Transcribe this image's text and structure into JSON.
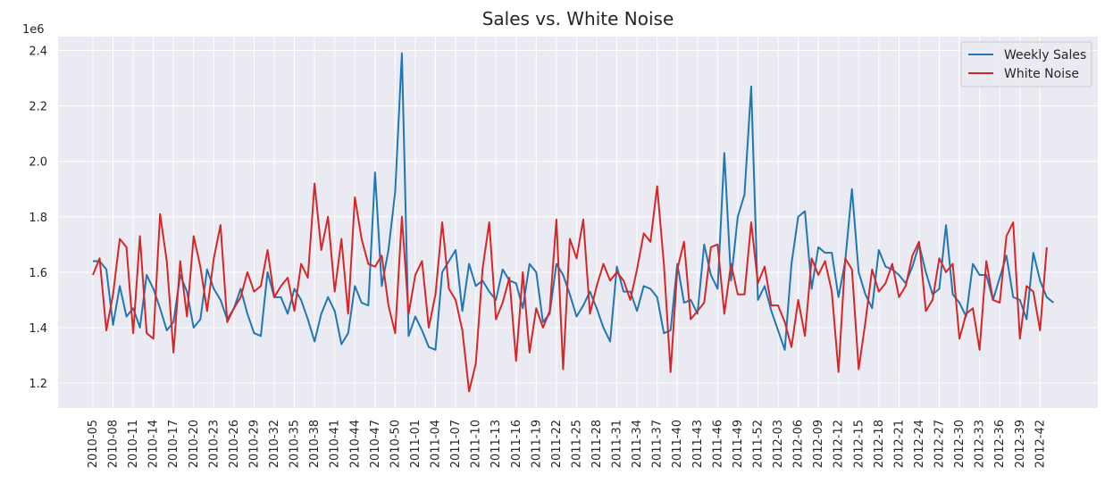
{
  "chart_data": {
    "type": "line",
    "title": "Sales vs. White Noise",
    "xlabel": "",
    "ylabel": "",
    "y_offset_label": "1e6",
    "ylim": [
      1.11,
      2.45
    ],
    "y_ticks": [
      "1.2",
      "1.4",
      "1.6",
      "1.8",
      "2.0",
      "2.2",
      "2.4"
    ],
    "x_tick_labels": [
      "2010-05",
      "2010-08",
      "2010-11",
      "2010-14",
      "2010-17",
      "2010-20",
      "2010-23",
      "2010-26",
      "2010-29",
      "2010-32",
      "2010-35",
      "2010-38",
      "2010-41",
      "2010-44",
      "2010-47",
      "2010-50",
      "2011-01",
      "2011-04",
      "2011-07",
      "2011-10",
      "2011-13",
      "2011-16",
      "2011-19",
      "2011-22",
      "2011-25",
      "2011-28",
      "2011-31",
      "2011-34",
      "2011-37",
      "2011-40",
      "2011-43",
      "2011-46",
      "2011-49",
      "2011-52",
      "2012-03",
      "2012-06",
      "2012-09",
      "2012-12",
      "2012-15",
      "2012-18",
      "2012-21",
      "2012-24",
      "2012-27",
      "2012-30",
      "2012-33",
      "2012-36",
      "2012-39",
      "2012-42"
    ],
    "grid": true,
    "legend_position": "top-right",
    "series": [
      {
        "name": "Weekly Sales",
        "color": "#1f77b4",
        "values": [
          1.64,
          1.64,
          1.61,
          1.41,
          1.55,
          1.44,
          1.47,
          1.4,
          1.59,
          1.54,
          1.47,
          1.39,
          1.42,
          1.59,
          1.53,
          1.4,
          1.43,
          1.61,
          1.54,
          1.5,
          1.43,
          1.47,
          1.54,
          1.45,
          1.38,
          1.37,
          1.6,
          1.51,
          1.51,
          1.45,
          1.54,
          1.5,
          1.43,
          1.35,
          1.45,
          1.51,
          1.46,
          1.34,
          1.38,
          1.55,
          1.49,
          1.48,
          1.96,
          1.55,
          1.68,
          1.89,
          2.39,
          1.37,
          1.44,
          1.39,
          1.33,
          1.32,
          1.6,
          1.64,
          1.68,
          1.46,
          1.63,
          1.55,
          1.57,
          1.53,
          1.5,
          1.61,
          1.57,
          1.56,
          1.47,
          1.63,
          1.6,
          1.42,
          1.45,
          1.63,
          1.59,
          1.52,
          1.44,
          1.48,
          1.53,
          1.47,
          1.4,
          1.35,
          1.62,
          1.53,
          1.53,
          1.46,
          1.55,
          1.54,
          1.51,
          1.38,
          1.39,
          1.63,
          1.49,
          1.5,
          1.45,
          1.7,
          1.59,
          1.54,
          2.03,
          1.57,
          1.8,
          1.88,
          2.27,
          1.5,
          1.55,
          1.46,
          1.39,
          1.32,
          1.63,
          1.8,
          1.82,
          1.54,
          1.69,
          1.67,
          1.67,
          1.51,
          1.64,
          1.9,
          1.6,
          1.52,
          1.47,
          1.68,
          1.62,
          1.61,
          1.59,
          1.56,
          1.62,
          1.7,
          1.6,
          1.52,
          1.54,
          1.77,
          1.52,
          1.49,
          1.44,
          1.63,
          1.59,
          1.59,
          1.5,
          1.58,
          1.66,
          1.51,
          1.5,
          1.43,
          1.67,
          1.57,
          1.51,
          1.49
        ]
      },
      {
        "name": "White Noise",
        "color": "#d62728",
        "values": [
          1.59,
          1.65,
          1.39,
          1.52,
          1.72,
          1.69,
          1.38,
          1.73,
          1.38,
          1.36,
          1.81,
          1.64,
          1.31,
          1.64,
          1.44,
          1.73,
          1.62,
          1.46,
          1.65,
          1.77,
          1.42,
          1.47,
          1.51,
          1.6,
          1.53,
          1.55,
          1.68,
          1.51,
          1.55,
          1.58,
          1.46,
          1.63,
          1.58,
          1.92,
          1.68,
          1.8,
          1.53,
          1.72,
          1.45,
          1.87,
          1.72,
          1.63,
          1.62,
          1.66,
          1.48,
          1.38,
          1.8,
          1.45,
          1.59,
          1.64,
          1.4,
          1.52,
          1.78,
          1.54,
          1.5,
          1.39,
          1.17,
          1.27,
          1.61,
          1.78,
          1.43,
          1.49,
          1.58,
          1.28,
          1.6,
          1.31,
          1.47,
          1.4,
          1.46,
          1.79,
          1.25,
          1.72,
          1.65,
          1.79,
          1.45,
          1.55,
          1.63,
          1.57,
          1.6,
          1.57,
          1.5,
          1.61,
          1.74,
          1.71,
          1.91,
          1.63,
          1.24,
          1.61,
          1.71,
          1.43,
          1.46,
          1.49,
          1.69,
          1.7,
          1.45,
          1.63,
          1.52,
          1.52,
          1.78,
          1.56,
          1.62,
          1.48,
          1.48,
          1.42,
          1.33,
          1.5,
          1.37,
          1.65,
          1.59,
          1.64,
          1.53,
          1.24,
          1.65,
          1.61,
          1.25,
          1.42,
          1.61,
          1.53,
          1.56,
          1.63,
          1.51,
          1.55,
          1.66,
          1.71,
          1.46,
          1.5,
          1.65,
          1.6,
          1.63,
          1.36,
          1.45,
          1.47,
          1.32,
          1.64,
          1.5,
          1.49,
          1.73,
          1.78,
          1.36,
          1.55,
          1.53,
          1.39,
          1.69
        ]
      }
    ]
  }
}
